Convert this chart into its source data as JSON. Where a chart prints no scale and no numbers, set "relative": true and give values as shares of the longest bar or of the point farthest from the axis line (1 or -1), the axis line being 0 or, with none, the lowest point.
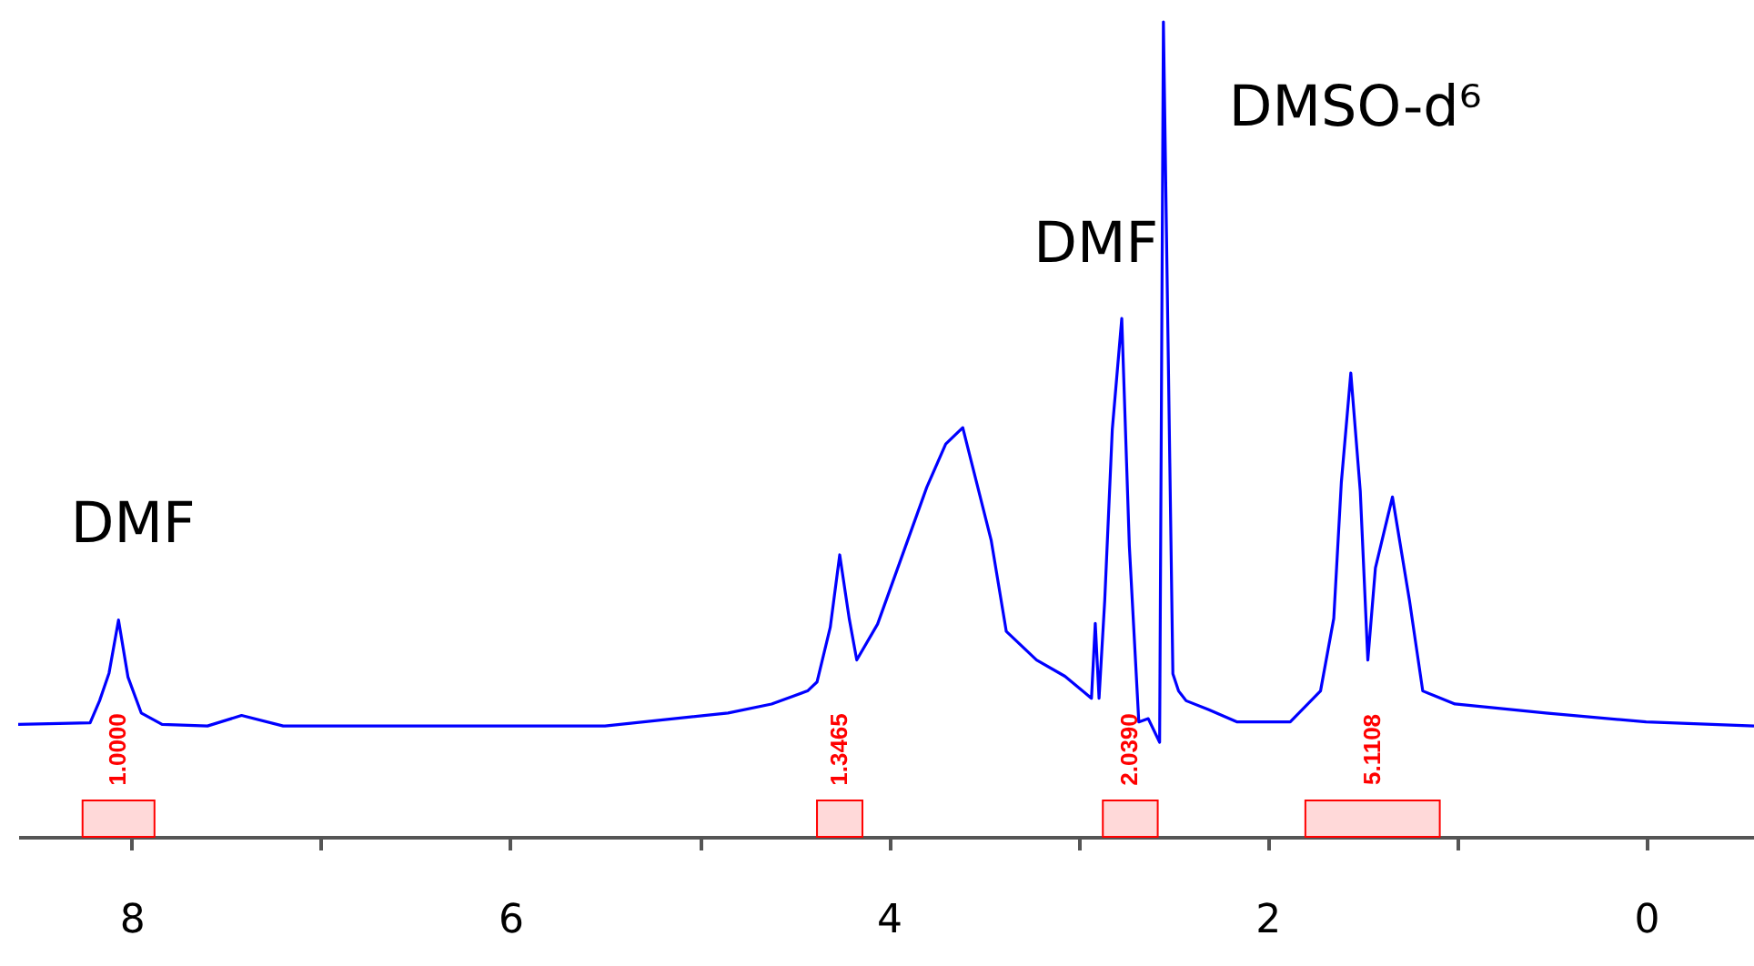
{
  "chart_data": {
    "type": "line",
    "relative": true,
    "color": "#0000ff",
    "tick_labels": "x",
    "xlim": [
      8.6,
      -0.57
    ],
    "xticks": [
      {
        "value": 8,
        "label": "8"
      },
      {
        "value": 7,
        "label": null
      },
      {
        "value": 6,
        "label": "6"
      },
      {
        "value": 5,
        "label": null
      },
      {
        "value": 4,
        "label": "4"
      },
      {
        "value": 3,
        "label": null
      },
      {
        "value": 2,
        "label": "2"
      },
      {
        "value": 1,
        "label": null
      },
      {
        "value": 0,
        "label": "0"
      }
    ],
    "x": [
      8.6,
      8.22,
      8.17,
      8.12,
      8.07,
      8.02,
      7.95,
      7.84,
      7.6,
      7.42,
      7.2,
      6.5,
      5.5,
      4.85,
      4.62,
      4.43,
      4.38,
      4.31,
      4.26,
      4.21,
      4.17,
      4.06,
      3.8,
      3.7,
      3.61,
      3.46,
      3.38,
      3.22,
      3.07,
      2.93,
      2.91,
      2.89,
      2.86,
      2.82,
      2.77,
      2.73,
      2.68,
      2.63,
      2.57,
      2.55,
      2.5,
      2.47,
      2.43,
      2.31,
      2.16,
      1.88,
      1.72,
      1.65,
      1.61,
      1.56,
      1.51,
      1.47,
      1.43,
      1.34,
      1.25,
      1.18,
      1.01,
      0.53,
      0,
      -0.57
    ],
    "values": [
      0.138,
      0.14,
      0.167,
      0.201,
      0.266,
      0.196,
      0.152,
      0.138,
      0.136,
      0.149,
      0.136,
      0.136,
      0.136,
      0.152,
      0.163,
      0.179,
      0.19,
      0.257,
      0.346,
      0.268,
      0.217,
      0.261,
      0.429,
      0.482,
      0.502,
      0.364,
      0.252,
      0.217,
      0.197,
      0.17,
      0.262,
      0.17,
      0.29,
      0.5,
      0.636,
      0.357,
      0.141,
      0.145,
      0.116,
      1,
      0.2,
      0.179,
      0.167,
      0.156,
      0.141,
      0.141,
      0.179,
      0.268,
      0.435,
      0.569,
      0.424,
      0.217,
      0.33,
      0.417,
      0.29,
      0.179,
      0.163,
      0.152,
      0.141,
      0.136
    ],
    "annotations": [
      {
        "text": "DMF",
        "x": 8.07,
        "y": 0.266
      },
      {
        "text": "DMF",
        "x": 2.77,
        "y": 0.636
      },
      "DMSO-d⁶"
    ],
    "bands": [
      {
        "axis": "x",
        "from": 8.26,
        "to": 7.88,
        "label": "1.0000",
        "color": "#ff0000"
      },
      {
        "axis": "x",
        "from": 4.38,
        "to": 4.14,
        "label": "1.3465",
        "color": "#ff0000"
      },
      {
        "axis": "x",
        "from": 2.87,
        "to": 2.58,
        "label": "2.0390",
        "color": "#ff0000"
      },
      {
        "axis": "x",
        "from": 1.8,
        "to": 1.09,
        "label": "5.1108",
        "color": "#ff0000"
      }
    ]
  }
}
